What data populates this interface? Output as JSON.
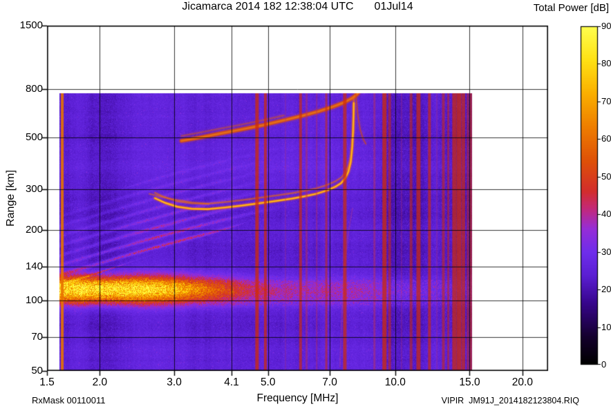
{
  "page": {
    "title_left": "Jicamarca 2014 182 12:38:04 UTC",
    "title_right": "01Jul14",
    "colorbar_title": "Total Power [dB]",
    "y_axis_label": "Range [km]",
    "footer_left": "RxMask 00110011",
    "footer_center": "Frequency [MHz]",
    "footer_right": "VIPIR  JM91J_2014182123804.RIQ"
  },
  "chart_data": {
    "type": "heatmap",
    "title": "Jicamarca 2014 182 12:38:04 UTC  01Jul14",
    "xlabel": "Frequency [MHz]",
    "ylabel": "Range [km]",
    "x_axis": {
      "scale": "log",
      "range_mhz": [
        1.5,
        23
      ],
      "ticks": [
        "1.5",
        "2.0",
        "3.0",
        "4.1",
        "5.0",
        "7.0",
        "10.0",
        "15.0",
        "20.0"
      ]
    },
    "y_axis": {
      "scale": "log",
      "range_km": [
        50,
        1500
      ],
      "ticks": [
        "1500",
        "800",
        "500",
        "300",
        "200",
        "140",
        "100",
        "70",
        "50"
      ]
    },
    "colorbar": {
      "label": "Total Power [dB]",
      "range_db": [
        0,
        90
      ],
      "ticks": [
        0,
        10,
        20,
        30,
        40,
        50,
        60,
        70,
        80,
        90
      ],
      "palette_stops": [
        [
          0.0,
          "#000000"
        ],
        [
          0.08,
          "#14002d"
        ],
        [
          0.18,
          "#37058c"
        ],
        [
          0.26,
          "#5a1ed2"
        ],
        [
          0.33,
          "#6e2deb"
        ],
        [
          0.4,
          "#962dd7"
        ],
        [
          0.46,
          "#c32878"
        ],
        [
          0.51,
          "#d22d2d"
        ],
        [
          0.6,
          "#de5008"
        ],
        [
          0.7,
          "#ee7d00"
        ],
        [
          0.8,
          "#faaf00"
        ],
        [
          0.9,
          "#ffe114"
        ],
        [
          1.0,
          "#ffff50"
        ]
      ]
    },
    "data_extent": {
      "freq_mhz": [
        1.6,
        15.25
      ],
      "range_km": [
        50,
        775
      ]
    },
    "background_noise_db": [
      20,
      28
    ],
    "features": {
      "e_region_blob": {
        "freq_mhz": [
          1.6,
          4.5
        ],
        "range_km": [
          95,
          130
        ],
        "center_freq_mhz": 2.05,
        "peak_db": 82
      },
      "e_band_across": {
        "freq_mhz": [
          1.6,
          15.2
        ],
        "range_km": [
          98,
          128
        ],
        "db": 38
      },
      "diagonal_spread": {
        "freq_mhz": [
          1.7,
          5.2
        ],
        "range_km": [
          115,
          215
        ],
        "db": 40
      },
      "f_trace_main": {
        "db": 62,
        "double_scale_r": 1.055,
        "points_mhz_km": [
          [
            2.7,
            274
          ],
          [
            2.85,
            262
          ],
          [
            3.05,
            252
          ],
          [
            3.3,
            247
          ],
          [
            3.6,
            246
          ],
          [
            3.95,
            250
          ],
          [
            4.35,
            255
          ],
          [
            4.8,
            261
          ],
          [
            5.25,
            267
          ],
          [
            5.7,
            273
          ],
          [
            6.1,
            279
          ],
          [
            6.5,
            286
          ],
          [
            6.9,
            296
          ],
          [
            7.2,
            306
          ],
          [
            7.45,
            318
          ],
          [
            7.62,
            334
          ],
          [
            7.75,
            356
          ],
          [
            7.85,
            392
          ],
          [
            7.91,
            450
          ],
          [
            7.95,
            530
          ],
          [
            7.97,
            620
          ],
          [
            7.98,
            700
          ]
        ]
      },
      "f_trace_start_double": {
        "points_mhz_km": [
          [
            2.62,
            286
          ],
          [
            2.95,
            272
          ],
          [
            3.3,
            263
          ],
          [
            3.62,
            259
          ]
        ]
      },
      "upper_trace": {
        "db": 58,
        "double_scale_r": 1.05,
        "points_mhz_km": [
          [
            3.12,
            482
          ],
          [
            3.45,
            498
          ],
          [
            3.85,
            518
          ],
          [
            4.3,
            538
          ],
          [
            4.85,
            562
          ],
          [
            5.45,
            590
          ],
          [
            6.05,
            618
          ],
          [
            6.6,
            645
          ],
          [
            7.1,
            673
          ],
          [
            7.55,
            702
          ],
          [
            7.9,
            733
          ],
          [
            8.12,
            762
          ],
          [
            8.2,
            778
          ]
        ]
      },
      "upper_trace_cusp": {
        "points_mhz_km": [
          [
            8.06,
            778
          ],
          [
            8.1,
            700
          ],
          [
            8.16,
            617
          ],
          [
            8.26,
            540
          ],
          [
            8.4,
            490
          ],
          [
            8.52,
            468
          ]
        ]
      },
      "lower_faint_arc": {
        "points_mhz_km": [
          [
            7.4,
            52
          ],
          [
            7.48,
            90
          ],
          [
            7.6,
            143
          ],
          [
            7.76,
            200
          ],
          [
            7.92,
            247
          ]
        ]
      },
      "rfi_lines": [
        {
          "f": 1.63,
          "w": 4,
          "a": 0.9,
          "c": "#e87300"
        },
        {
          "f": 4.71,
          "w": 5,
          "a": 0.75,
          "c": "#cf2b06"
        },
        {
          "f": 4.93,
          "w": 4,
          "a": 0.7,
          "c": "#cf2b06"
        },
        {
          "f": 5.5,
          "w": 2,
          "a": 0.25,
          "c": "#b03070"
        },
        {
          "f": 5.97,
          "w": 4,
          "a": 0.65,
          "c": "#cf2b06"
        },
        {
          "f": 6.17,
          "w": 3,
          "a": 0.45,
          "c": "#c03050"
        },
        {
          "f": 6.52,
          "w": 2,
          "a": 0.4,
          "c": "#c03050"
        },
        {
          "f": 6.87,
          "w": 3,
          "a": 0.55,
          "c": "#cf2b06"
        },
        {
          "f": 7.6,
          "w": 5,
          "a": 0.7,
          "c": "#cf2b06"
        },
        {
          "f": 8.93,
          "w": 3,
          "a": 0.45,
          "c": "#c03050"
        },
        {
          "f": 9.43,
          "w": 6,
          "a": 0.75,
          "c": "#cf2b06"
        },
        {
          "f": 9.7,
          "w": 4,
          "a": 0.55,
          "c": "#cf2b06"
        },
        {
          "f": 10.35,
          "w": 2,
          "a": 0.3,
          "c": "#b03070"
        },
        {
          "f": 10.9,
          "w": 4,
          "a": 0.55,
          "c": "#cf2b06"
        },
        {
          "f": 11.35,
          "w": 6,
          "a": 0.7,
          "c": "#cf2b06"
        },
        {
          "f": 12.05,
          "w": 4,
          "a": 0.65,
          "c": "#cf2b06"
        },
        {
          "f": 12.55,
          "w": 2,
          "a": 0.3,
          "c": "#b03070"
        },
        {
          "f": 13.0,
          "w": 4,
          "a": 0.55,
          "c": "#cf2b06"
        },
        {
          "f": 13.35,
          "w": 3,
          "a": 0.5,
          "c": "#cf2b06"
        },
        {
          "f": 13.8,
          "w": 6,
          "a": 0.7,
          "c": "#cf2b06"
        },
        {
          "f": 14.15,
          "w": 7,
          "a": 0.75,
          "c": "#cf2b06"
        },
        {
          "f": 14.5,
          "w": 5,
          "a": 0.65,
          "c": "#cf2b06"
        },
        {
          "f": 14.85,
          "w": 3,
          "a": 0.5,
          "c": "#cf2b06"
        },
        {
          "f": 15.08,
          "w": 4,
          "a": 0.6,
          "c": "#cf2b06"
        }
      ]
    }
  }
}
